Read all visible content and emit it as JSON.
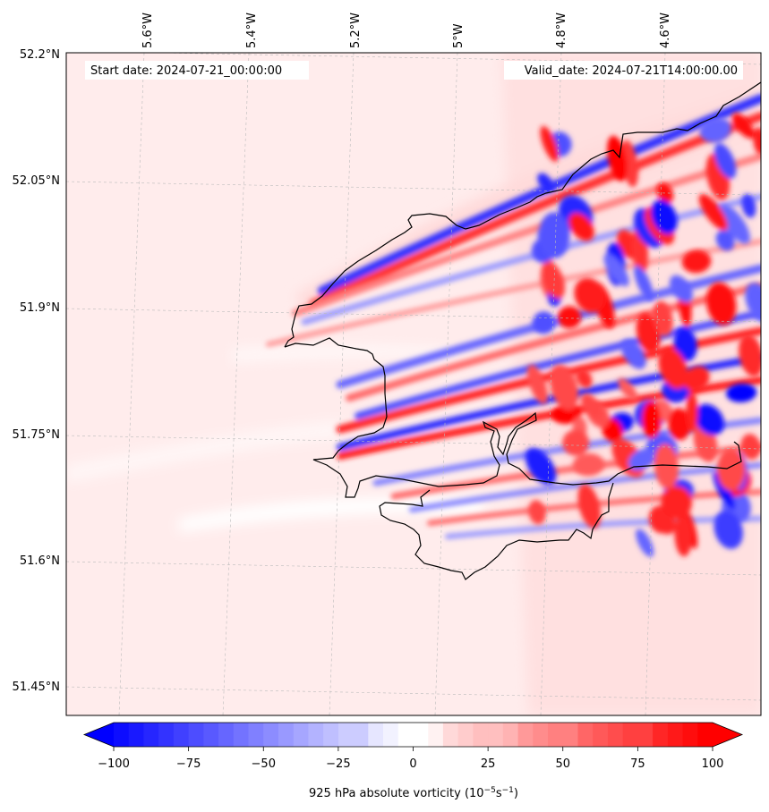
{
  "map": {
    "start_date": "Start date: 2024-07-21_00:00:00",
    "valid_date": "Valid_date: 2024-07-21T14:00:00.00",
    "lon_labels": [
      "5.6°W",
      "5.4°W",
      "5.2°W",
      "5°W",
      "4.8°W",
      "4.6°W"
    ],
    "lat_labels": [
      "52.2°N",
      "52.05°N",
      "51.9°N",
      "51.75°N",
      "51.6°N",
      "51.45°N"
    ],
    "field": "925 hPa absolute vorticity",
    "colormap": "bwr",
    "background_color": "#ffecec",
    "coastline_color": "#000000",
    "gridlines": true
  },
  "colorbar": {
    "ticks": [
      "−100",
      "−75",
      "−50",
      "−25",
      "0",
      "25",
      "50",
      "75",
      "100"
    ],
    "label_main": "925 hPa absolute vorticity (10",
    "label_exp1": "−5",
    "label_mid": "s",
    "label_exp2": "−1",
    "label_end": ")",
    "min_color": "#0000ff",
    "mid_color": "#ffffff",
    "max_color": "#ff0000",
    "extend": "both"
  }
}
